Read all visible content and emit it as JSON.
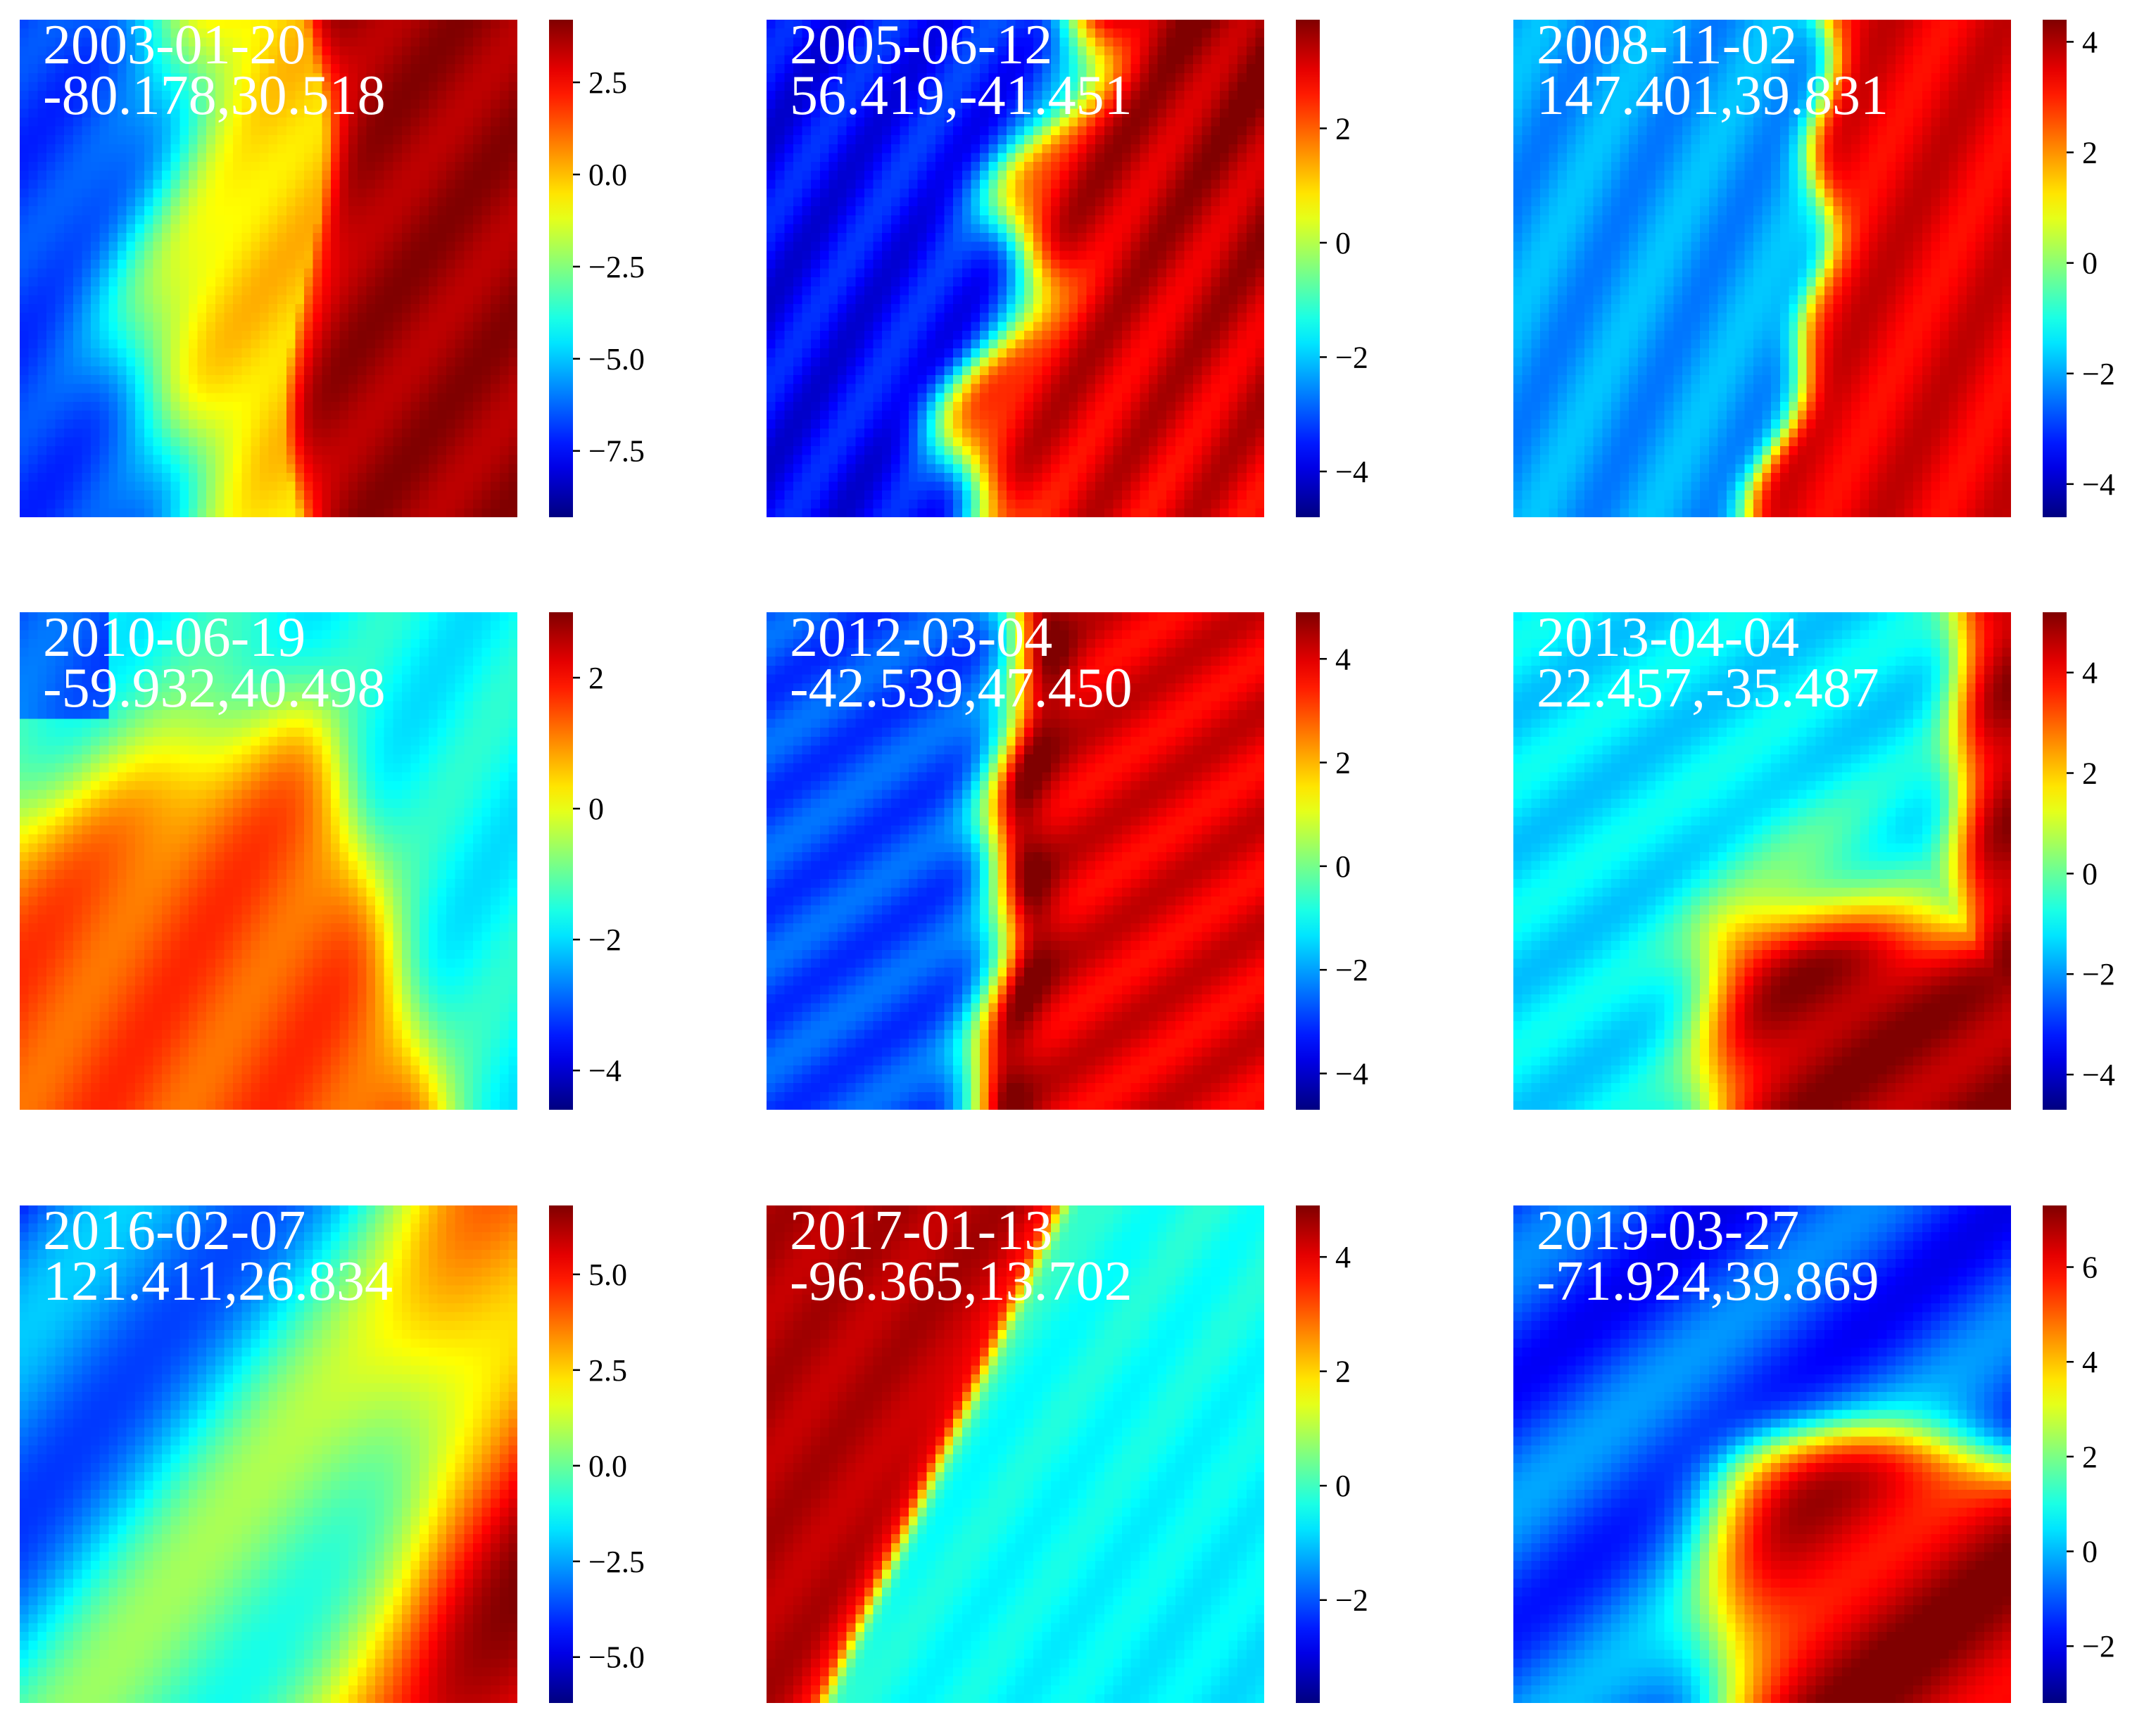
{
  "chart_data": [
    {
      "type": "heatmap",
      "title": [
        "2003-01-20",
        "-80.178,30.518"
      ],
      "colormap": "jet",
      "pattern": "front-left",
      "zlim": [
        -9.3,
        4.2
      ],
      "colorbar_ticks": [
        2.5,
        0.0,
        -2.5,
        -5.0,
        -7.5
      ],
      "colorbar_tick_labels": [
        "2.5",
        "0.0",
        "−2.5",
        "−5.0",
        "−7.5"
      ]
    },
    {
      "type": "heatmap",
      "title": [
        "2005-06-12",
        "56.419,-41.451"
      ],
      "colormap": "jet",
      "pattern": "front-diag",
      "zlim": [
        -4.8,
        3.9
      ],
      "colorbar_ticks": [
        2,
        0,
        -2,
        -4
      ],
      "colorbar_tick_labels": [
        "2",
        "0",
        "−2",
        "−4"
      ]
    },
    {
      "type": "heatmap",
      "title": [
        "2008-11-02",
        "147.401,39.831"
      ],
      "colormap": "jet",
      "pattern": "front-sharp",
      "zlim": [
        -4.6,
        4.4
      ],
      "colorbar_ticks": [
        4,
        2,
        0,
        -2,
        -4
      ],
      "colorbar_tick_labels": [
        "4",
        "2",
        "0",
        "−2",
        "−4"
      ]
    },
    {
      "type": "heatmap",
      "title": [
        "2010-06-19",
        "-59.932,40.498"
      ],
      "colormap": "jet",
      "pattern": "tongue",
      "zlim": [
        -4.6,
        3.0
      ],
      "colorbar_ticks": [
        2,
        0,
        -2,
        -4
      ],
      "colorbar_tick_labels": [
        "2",
        "0",
        "−2",
        "−4"
      ]
    },
    {
      "type": "heatmap",
      "title": [
        "2012-03-04",
        "-42.539,47.450"
      ],
      "colormap": "jet",
      "pattern": "front-vertical",
      "zlim": [
        -4.7,
        4.9
      ],
      "colorbar_ticks": [
        4,
        2,
        0,
        -2,
        -4
      ],
      "colorbar_tick_labels": [
        "4",
        "2",
        "0",
        "−2",
        "−4"
      ]
    },
    {
      "type": "heatmap",
      "title": [
        "2013-04-04",
        "22.457,-35.487"
      ],
      "colormap": "jet",
      "pattern": "corner-br",
      "zlim": [
        -4.7,
        5.2
      ],
      "colorbar_ticks": [
        4,
        2,
        0,
        -2,
        -4
      ],
      "colorbar_tick_labels": [
        "4",
        "2",
        "0",
        "−2",
        "−4"
      ]
    },
    {
      "type": "heatmap",
      "title": [
        "2016-02-07",
        "121.411,26.834"
      ],
      "colormap": "jet",
      "pattern": "gradient-diag",
      "zlim": [
        -6.2,
        6.8
      ],
      "colorbar_ticks": [
        5.0,
        2.5,
        0.0,
        -2.5,
        -5.0
      ],
      "colorbar_tick_labels": [
        "5.0",
        "2.5",
        "0.0",
        "−2.5",
        "−5.0"
      ]
    },
    {
      "type": "heatmap",
      "title": [
        "2017-01-13",
        "-96.365,13.702"
      ],
      "colormap": "jet",
      "pattern": "warm-topleft",
      "zlim": [
        -3.8,
        4.9
      ],
      "colorbar_ticks": [
        4,
        2,
        0,
        -2
      ],
      "colorbar_tick_labels": [
        "4",
        "2",
        "0",
        "−2"
      ]
    },
    {
      "type": "heatmap",
      "title": [
        "2019-03-27",
        "-71.924,39.869"
      ],
      "colormap": "jet",
      "pattern": "blob-bottom",
      "zlim": [
        -3.2,
        7.3
      ],
      "colorbar_ticks": [
        6,
        4,
        2,
        0,
        -2
      ],
      "colorbar_tick_labels": [
        "6",
        "4",
        "2",
        "0",
        "−2"
      ]
    }
  ]
}
